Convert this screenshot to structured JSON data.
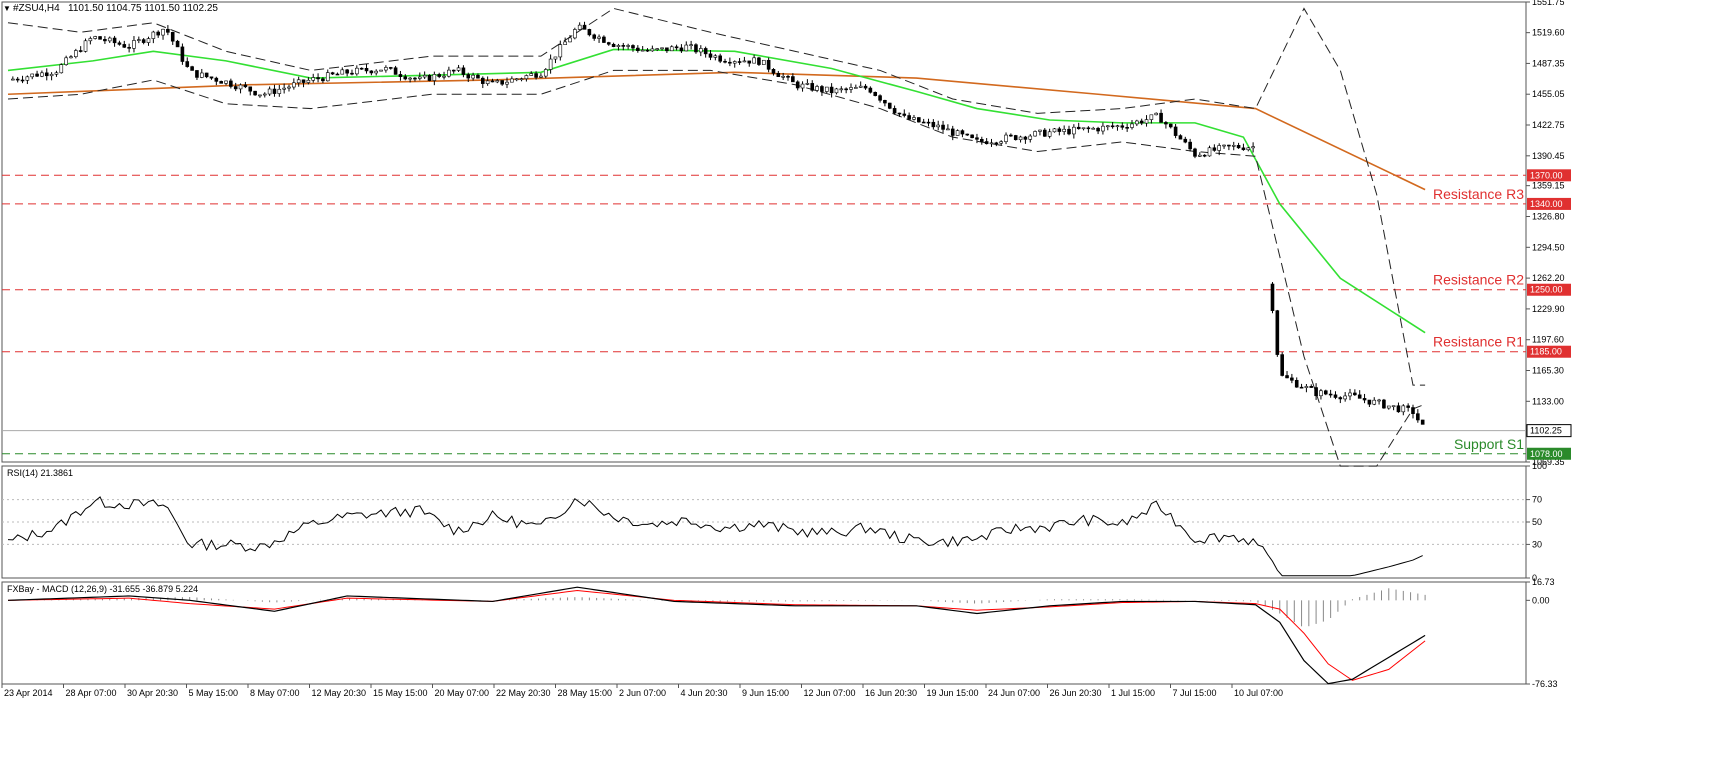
{
  "header": {
    "title": "#ZSU4,H4",
    "ohlc": "1101.50 1104.75 1101.50 1102.25"
  },
  "colors": {
    "resistance": "#e03030",
    "support": "#2a8a2a",
    "ma_fast": "#33e033",
    "ma_slow": "#d2691e",
    "bands": "#222222",
    "rsi": "#000000",
    "macd": "#000000",
    "signal": "#ff0000",
    "histogram": "#888888"
  },
  "chart_data": [
    {
      "type": "candlestick",
      "name": "price",
      "ylim": [
        1069.35,
        1551.75
      ],
      "yticks": [
        "1551.75",
        "1519.60",
        "1487.35",
        "1455.05",
        "1422.75",
        "1390.45",
        "1359.15",
        "1326.80",
        "1294.50",
        "1262.20",
        "1229.90",
        "1197.60",
        "1165.30",
        "1133.00",
        "1069.35"
      ],
      "current_price": "1102.25",
      "x_labels": [
        "23 Apr 2014",
        "28 Apr 07:00",
        "30 Apr 20:30",
        "5 May 15:00",
        "8 May 07:00",
        "12 May 20:30",
        "15 May 15:00",
        "20 May 07:00",
        "22 May 20:30",
        "28 May 15:00",
        "2 Jun 07:00",
        "4 Jun 20:30",
        "9 Jun 15:00",
        "12 Jun 07:00",
        "16 Jun 20:30",
        "19 Jun 15:00",
        "24 Jun 07:00",
        "26 Jun 20:30",
        "1 Jul 15:00",
        "7 Jul 15:00",
        "10 Jul 07:00"
      ],
      "levels": [
        {
          "label": "Resistance R3",
          "value": "1340.00",
          "kind": "resistance"
        },
        {
          "label": "Resistance R2",
          "value": "1250.00",
          "kind": "resistance"
        },
        {
          "label": "Resistance R1",
          "value": "1185.00",
          "kind": "resistance"
        },
        {
          "label": "Support S1",
          "value": "1078.00",
          "kind": "support"
        },
        {
          "label": "",
          "value": "1370.00",
          "kind": "resistance"
        }
      ],
      "price_path": [
        [
          0,
          1470
        ],
        [
          4,
          1480
        ],
        [
          7,
          1515
        ],
        [
          10,
          1505
        ],
        [
          13,
          1525
        ],
        [
          15,
          1478
        ],
        [
          18,
          1468
        ],
        [
          21,
          1455
        ],
        [
          25,
          1470
        ],
        [
          28,
          1478
        ],
        [
          31,
          1482
        ],
        [
          34,
          1470
        ],
        [
          37,
          1480
        ],
        [
          40,
          1465
        ],
        [
          44,
          1478
        ],
        [
          47,
          1525
        ],
        [
          50,
          1508
        ],
        [
          53,
          1500
        ],
        [
          56,
          1505
        ],
        [
          59,
          1492
        ],
        [
          62,
          1490
        ],
        [
          65,
          1465
        ],
        [
          68,
          1458
        ],
        [
          71,
          1462
        ],
        [
          74,
          1430
        ],
        [
          77,
          1420
        ],
        [
          80,
          1405
        ],
        [
          83,
          1410
        ],
        [
          86,
          1415
        ],
        [
          89,
          1418
        ],
        [
          92,
          1422
        ],
        [
          95,
          1432
        ],
        [
          98,
          1392
        ],
        [
          101,
          1400
        ],
        [
          103,
          1400
        ],
        [
          105,
          1160
        ],
        [
          108,
          1142
        ],
        [
          111,
          1138
        ],
        [
          114,
          1128
        ],
        [
          116,
          1122
        ],
        [
          117,
          1102
        ]
      ]
    },
    {
      "type": "line",
      "name": "RSI(14) 21.3861",
      "ylim": [
        0,
        100
      ],
      "yticks": [
        "100",
        "70",
        "50",
        "30",
        "0"
      ],
      "values_path": [
        [
          0,
          32
        ],
        [
          4,
          45
        ],
        [
          7,
          68
        ],
        [
          10,
          66
        ],
        [
          13,
          65
        ],
        [
          15,
          30
        ],
        [
          18,
          30
        ],
        [
          21,
          28
        ],
        [
          25,
          48
        ],
        [
          28,
          55
        ],
        [
          31,
          58
        ],
        [
          34,
          60
        ],
        [
          37,
          42
        ],
        [
          40,
          55
        ],
        [
          44,
          45
        ],
        [
          47,
          72
        ],
        [
          50,
          55
        ],
        [
          53,
          48
        ],
        [
          56,
          52
        ],
        [
          59,
          45
        ],
        [
          62,
          48
        ],
        [
          65,
          42
        ],
        [
          68,
          40
        ],
        [
          71,
          45
        ],
        [
          74,
          35
        ],
        [
          77,
          32
        ],
        [
          80,
          35
        ],
        [
          83,
          44
        ],
        [
          86,
          46
        ],
        [
          89,
          52
        ],
        [
          92,
          48
        ],
        [
          95,
          65
        ],
        [
          98,
          35
        ],
        [
          101,
          38
        ],
        [
          103,
          32
        ],
        [
          105,
          2
        ],
        [
          108,
          2
        ],
        [
          111,
          2
        ],
        [
          114,
          10
        ],
        [
          116,
          16
        ],
        [
          117,
          21
        ]
      ]
    },
    {
      "type": "line",
      "name": "FXBay - MACD (12,26,9) -31.655 -36.879 5.224",
      "ylim": [
        -76.33,
        16.73
      ],
      "yticks": [
        "16.73",
        "0.00",
        "-76.33"
      ],
      "macd_path": [
        [
          0,
          0
        ],
        [
          10,
          4
        ],
        [
          15,
          0
        ],
        [
          22,
          -10
        ],
        [
          28,
          4
        ],
        [
          40,
          -1
        ],
        [
          47,
          12
        ],
        [
          55,
          -1
        ],
        [
          65,
          -5
        ],
        [
          75,
          -5
        ],
        [
          80,
          -12
        ],
        [
          86,
          -5
        ],
        [
          92,
          -1
        ],
        [
          98,
          -1
        ],
        [
          103,
          -4
        ],
        [
          105,
          -20
        ],
        [
          107,
          -55
        ],
        [
          109,
          -76
        ],
        [
          111,
          -72
        ],
        [
          114,
          -52
        ],
        [
          117,
          -32
        ]
      ],
      "signal_path": [
        [
          0,
          0
        ],
        [
          10,
          2
        ],
        [
          15,
          -3
        ],
        [
          22,
          -8
        ],
        [
          28,
          2
        ],
        [
          40,
          -1
        ],
        [
          47,
          9
        ],
        [
          55,
          0
        ],
        [
          65,
          -4
        ],
        [
          75,
          -5
        ],
        [
          80,
          -9
        ],
        [
          86,
          -6
        ],
        [
          92,
          -2
        ],
        [
          98,
          -1
        ],
        [
          103,
          -3
        ],
        [
          105,
          -8
        ],
        [
          107,
          -30
        ],
        [
          109,
          -58
        ],
        [
          111,
          -73
        ],
        [
          114,
          -63
        ],
        [
          117,
          -37
        ]
      ]
    }
  ]
}
